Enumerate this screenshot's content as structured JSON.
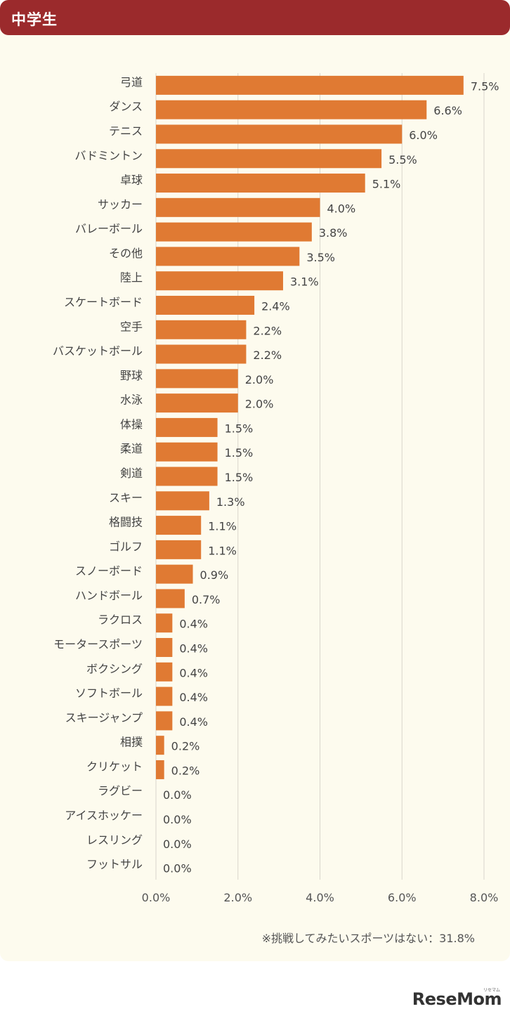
{
  "header": {
    "title": "中学生"
  },
  "chart_data": {
    "type": "bar",
    "orientation": "horizontal",
    "categories": [
      "弓道",
      "ダンス",
      "テニス",
      "バドミントン",
      "卓球",
      "サッカー",
      "バレーボール",
      "その他",
      "陸上",
      "スケートボード",
      "空手",
      "バスケットボール",
      "野球",
      "水泳",
      "体操",
      "柔道",
      "剣道",
      "スキー",
      "格闘技",
      "ゴルフ",
      "スノーボード",
      "ハンドボール",
      "ラクロス",
      "モータースポーツ",
      "ボクシング",
      "ソフトボール",
      "スキージャンプ",
      "相撲",
      "クリケット",
      "ラグビー",
      "アイスホッケー",
      "レスリング",
      "フットサル"
    ],
    "values": [
      7.5,
      6.6,
      6.0,
      5.5,
      5.1,
      4.0,
      3.8,
      3.5,
      3.1,
      2.4,
      2.2,
      2.2,
      2.0,
      2.0,
      1.5,
      1.5,
      1.5,
      1.3,
      1.1,
      1.1,
      0.9,
      0.7,
      0.4,
      0.4,
      0.4,
      0.4,
      0.4,
      0.2,
      0.2,
      0.0,
      0.0,
      0.0,
      0.0
    ],
    "value_labels": [
      "7.5%",
      "6.6%",
      "6.0%",
      "5.5%",
      "5.1%",
      "4.0%",
      "3.8%",
      "3.5%",
      "3.1%",
      "2.4%",
      "2.2%",
      "2.2%",
      "2.0%",
      "2.0%",
      "1.5%",
      "1.5%",
      "1.5%",
      "1.3%",
      "1.1%",
      "1.1%",
      "0.9%",
      "0.7%",
      "0.4%",
      "0.4%",
      "0.4%",
      "0.4%",
      "0.4%",
      "0.2%",
      "0.2%",
      "0.0%",
      "0.0%",
      "0.0%",
      "0.0%"
    ],
    "xlim": [
      0,
      8
    ],
    "xticks": [
      0,
      2,
      4,
      6,
      8
    ],
    "xtick_labels": [
      "0.0%",
      "2.0%",
      "4.0%",
      "6.0%",
      "8.0%"
    ],
    "grid": true,
    "bar_color": "#e07a33"
  },
  "footnote": "※挑戦してみたいスポーツはない：31.8%",
  "logo": {
    "text": "ReseMom",
    "kana": "リセマム"
  }
}
